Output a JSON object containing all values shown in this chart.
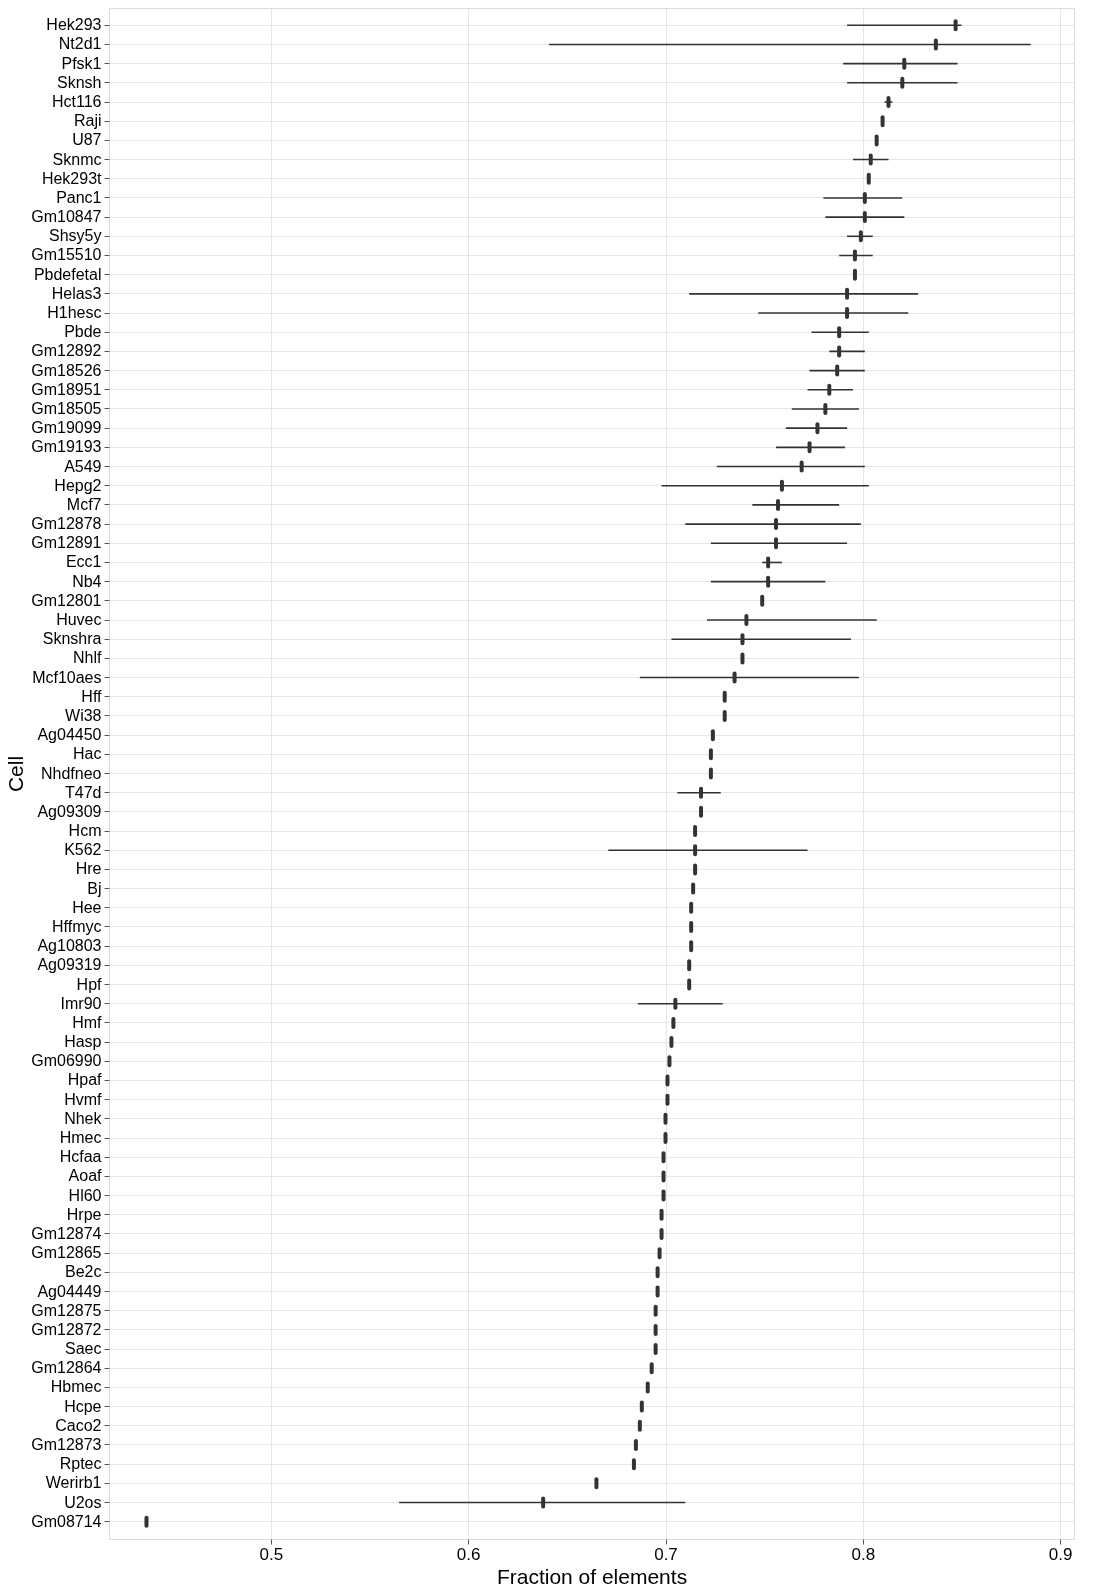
{
  "chart_data": {
    "type": "scatter",
    "orientation": "horizontal",
    "xlabel": "Fraction of elements",
    "ylabel": "Cell",
    "categories": [
      "Hek293",
      "Nt2d1",
      "Pfsk1",
      "Sknsh",
      "Hct116",
      "Raji",
      "U87",
      "Sknmc",
      "Hek293t",
      "Panc1",
      "Gm10847",
      "Shsy5y",
      "Gm15510",
      "Pbdefetal",
      "Helas3",
      "H1hesc",
      "Pbde",
      "Gm12892",
      "Gm18526",
      "Gm18951",
      "Gm18505",
      "Gm19099",
      "Gm19193",
      "A549",
      "Hepg2",
      "Mcf7",
      "Gm12878",
      "Gm12891",
      "Ecc1",
      "Nb4",
      "Gm12801",
      "Huvec",
      "Sknshra",
      "Nhlf",
      "Mcf10aes",
      "Hff",
      "Wi38",
      "Ag04450",
      "Hac",
      "Nhdfneo",
      "T47d",
      "Ag09309",
      "Hcm",
      "K562",
      "Hre",
      "Bj",
      "Hee",
      "Hffmyc",
      "Ag10803",
      "Ag09319",
      "Hpf",
      "Imr90",
      "Hmf",
      "Hasp",
      "Gm06990",
      "Hpaf",
      "Hvmf",
      "Nhek",
      "Hmec",
      "Hcfaa",
      "Aoaf",
      "Hl60",
      "Hrpe",
      "Gm12874",
      "Gm12865",
      "Be2c",
      "Ag04449",
      "Gm12875",
      "Gm12872",
      "Saec",
      "Gm12864",
      "Hbmec",
      "Hcpe",
      "Caco2",
      "Gm12873",
      "Rptec",
      "Werirb1",
      "U2os",
      "Gm08714"
    ],
    "values": [
      0.847,
      0.837,
      0.821,
      0.82,
      0.813,
      0.81,
      0.807,
      0.804,
      0.803,
      0.801,
      0.801,
      0.799,
      0.796,
      0.796,
      0.792,
      0.792,
      0.788,
      0.788,
      0.787,
      0.783,
      0.781,
      0.777,
      0.773,
      0.769,
      0.759,
      0.757,
      0.756,
      0.756,
      0.752,
      0.752,
      0.749,
      0.741,
      0.739,
      0.739,
      0.735,
      0.73,
      0.73,
      0.724,
      0.723,
      0.723,
      0.718,
      0.718,
      0.715,
      0.715,
      0.715,
      0.714,
      0.713,
      0.713,
      0.713,
      0.712,
      0.712,
      0.705,
      0.704,
      0.703,
      0.702,
      0.701,
      0.701,
      0.7,
      0.7,
      0.699,
      0.699,
      0.699,
      0.698,
      0.698,
      0.697,
      0.696,
      0.696,
      0.695,
      0.695,
      0.695,
      0.693,
      0.691,
      0.688,
      0.687,
      0.685,
      0.684,
      0.665,
      0.638,
      0.437
    ],
    "errors": [
      [
        0.792,
        0.85
      ],
      [
        0.641,
        0.885
      ],
      [
        0.79,
        0.848
      ],
      [
        0.792,
        0.848
      ],
      [
        0.811,
        0.815
      ],
      null,
      null,
      [
        0.795,
        0.813
      ],
      null,
      [
        0.78,
        0.82
      ],
      [
        0.781,
        0.821
      ],
      [
        0.792,
        0.805
      ],
      [
        0.788,
        0.805
      ],
      null,
      [
        0.712,
        0.828
      ],
      [
        0.747,
        0.823
      ],
      [
        0.774,
        0.803
      ],
      [
        0.783,
        0.801
      ],
      [
        0.773,
        0.801
      ],
      [
        0.772,
        0.795
      ],
      [
        0.764,
        0.798
      ],
      [
        0.761,
        0.792
      ],
      [
        0.756,
        0.791
      ],
      [
        0.726,
        0.801
      ],
      [
        0.698,
        0.803
      ],
      [
        0.744,
        0.788
      ],
      [
        0.71,
        0.799
      ],
      [
        0.723,
        0.792
      ],
      [
        0.749,
        0.759
      ],
      [
        0.723,
        0.781
      ],
      null,
      [
        0.721,
        0.807
      ],
      [
        0.703,
        0.794
      ],
      null,
      [
        0.687,
        0.798
      ],
      null,
      null,
      null,
      null,
      null,
      [
        0.706,
        0.728
      ],
      null,
      null,
      [
        0.671,
        0.772
      ],
      null,
      null,
      null,
      null,
      null,
      null,
      null,
      [
        0.686,
        0.729
      ],
      null,
      null,
      null,
      null,
      null,
      null,
      null,
      null,
      null,
      null,
      null,
      null,
      null,
      null,
      null,
      null,
      null,
      null,
      null,
      null,
      null,
      null,
      null,
      null,
      null,
      [
        0.565,
        0.71
      ],
      null
    ],
    "color": "#333333",
    "xlim": [
      0.418,
      0.907
    ],
    "xticks": [
      0.5,
      0.6,
      0.7,
      0.8,
      0.9
    ],
    "grid": true
  }
}
